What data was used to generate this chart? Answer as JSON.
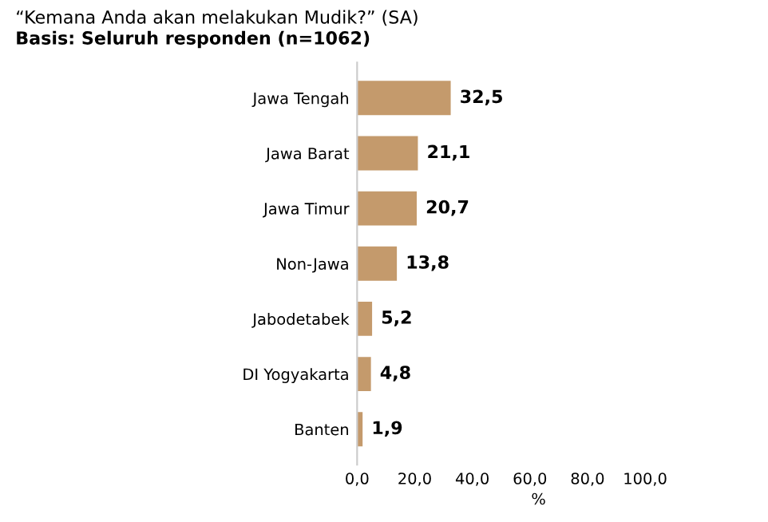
{
  "chart_data": {
    "type": "bar",
    "orientation": "horizontal",
    "title": "“Kemana Anda akan melakukan Mudik?” (SA)",
    "subtitle": "Basis: Seluruh responden (n=1062)",
    "xlabel": "%",
    "categories": [
      "Jawa Tengah",
      "Jawa Barat",
      "Jawa Timur",
      "Non-Jawa",
      "Jabodetabek",
      "DI Yogyakarta",
      "Banten"
    ],
    "values": [
      32.5,
      21.1,
      20.7,
      13.8,
      5.2,
      4.8,
      1.9
    ],
    "value_labels": [
      "32,5",
      "21,1",
      "20,7",
      "13,8",
      "5,2",
      "4,8",
      "1,9"
    ],
    "color": "#c49a6c",
    "xlim": [
      0,
      100
    ],
    "xticks": [
      {
        "value": 0,
        "label": "0,0"
      },
      {
        "value": 20,
        "label": "20,0"
      },
      {
        "value": 40,
        "label": "40,0"
      },
      {
        "value": 60,
        "label": "60,0"
      },
      {
        "value": 80,
        "label": "80,0"
      },
      {
        "value": 100,
        "label": "100,0"
      }
    ],
    "grid": false
  }
}
